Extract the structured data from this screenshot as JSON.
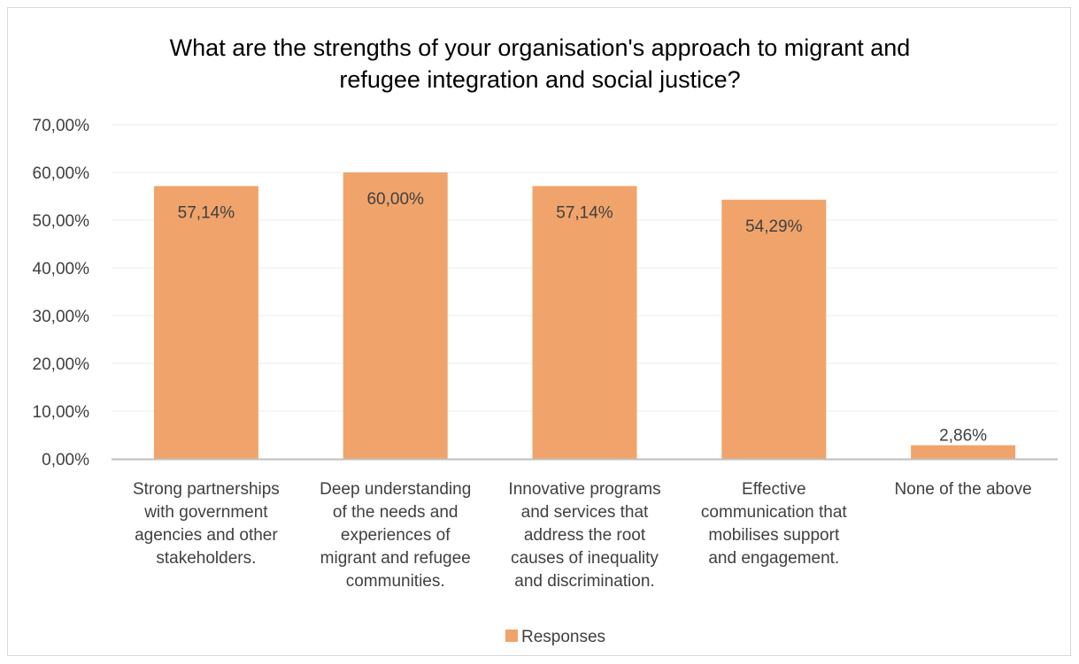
{
  "chart_data": {
    "type": "bar",
    "title": "What are the strengths of your organisation's approach to migrant and refugee integration and social justice?",
    "title_lines": [
      "What are the strengths of your organisation's approach to migrant and",
      "refugee integration and social justice?"
    ],
    "categories": [
      "Strong partnerships with government agencies and other stakeholders.",
      "Deep understanding of the needs and experiences of migrant and refugee communities.",
      "Innovative programs and services that address the root causes of inequality and discrimination.",
      "Effective communication that mobilises support and engagement.",
      "None of the above"
    ],
    "category_lines": [
      [
        "Strong partnerships",
        "with government",
        "agencies and other",
        "stakeholders."
      ],
      [
        "Deep understanding",
        "of the needs and",
        "experiences of",
        "migrant and refugee",
        "communities."
      ],
      [
        "Innovative programs",
        "and services that",
        "address the root",
        "causes of inequality",
        "and discrimination."
      ],
      [
        "Effective",
        "communication that",
        "mobilises support",
        "and engagement."
      ],
      [
        "None of the above"
      ]
    ],
    "series": [
      {
        "name": "Responses",
        "values": [
          57.14,
          60.0,
          57.14,
          54.29,
          2.86
        ],
        "labels": [
          "57,14%",
          "60,00%",
          "57,14%",
          "54,29%",
          "2,86%"
        ],
        "color": "#f0a46b"
      }
    ],
    "ylim": [
      0,
      70
    ],
    "yticks": [
      0,
      10,
      20,
      30,
      40,
      50,
      60,
      70
    ],
    "ytick_labels": [
      "0,00%",
      "10,00%",
      "20,00%",
      "30,00%",
      "40,00%",
      "50,00%",
      "60,00%",
      "70,00%"
    ],
    "xlabel": "",
    "ylabel": "",
    "grid": true,
    "legend": "bottom",
    "gridline_color": "#eeeeee",
    "axis_color": "#bfbfbf"
  }
}
